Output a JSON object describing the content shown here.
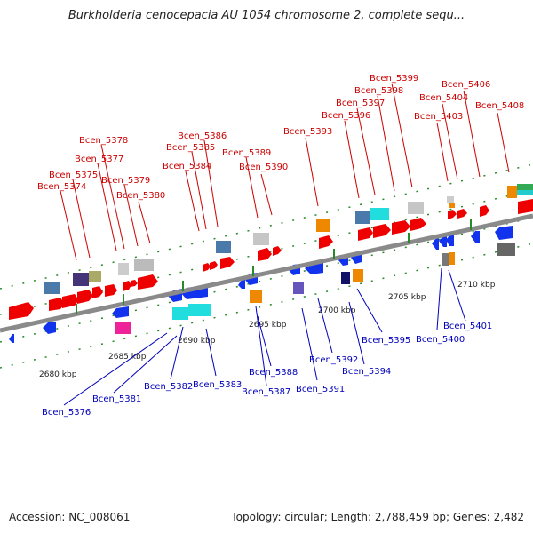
{
  "title": "Burkholderia cenocepacia AU 1054 chromosome 2, complete sequ...",
  "footer": {
    "accession": "Accession: NC_008061",
    "stats": "Topology: circular; Length: 2,788,459 bp; Genes: 2,482"
  },
  "colors": {
    "forward_label": "#cc0000",
    "reverse_label": "#0000bb",
    "axis": "#8a8a8a",
    "tick": "#2a8a2a",
    "forward_gene": "#ee0000",
    "reverse_gene": "#1133ee"
  },
  "ticks": [
    "2680 kbp",
    "2685 kbp",
    "2690 kbp",
    "2695 kbp",
    "2700 kbp",
    "2705 kbp",
    "2710 kbp"
  ],
  "top_labels": [
    "Bcen_5374",
    "Bcen_5375",
    "Bcen_5377",
    "Bcen_5378",
    "Bcen_5379",
    "Bcen_5380",
    "Bcen_5384",
    "Bcen_5385",
    "Bcen_5386",
    "Bcen_5389",
    "Bcen_5390",
    "Bcen_5393",
    "Bcen_5396",
    "Bcen_5397",
    "Bcen_5398",
    "Bcen_5399",
    "Bcen_5403",
    "Bcen_5404",
    "Bcen_5406",
    "Bcen_5408"
  ],
  "bottom_labels": [
    "Bcen_5376",
    "Bcen_5381",
    "Bcen_5382",
    "Bcen_5383",
    "Bcen_5387",
    "Bcen_5388",
    "Bcen_5391",
    "Bcen_5392",
    "Bcen_5394",
    "Bcen_5395",
    "Bcen_5400",
    "Bcen_5401"
  ]
}
